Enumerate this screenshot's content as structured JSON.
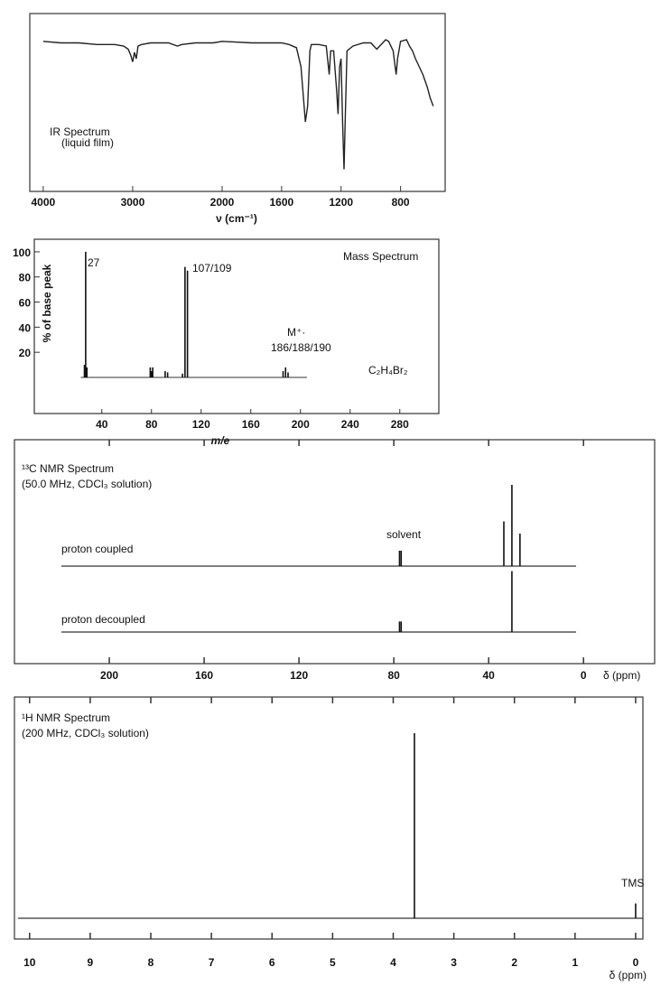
{
  "chart_data": [
    {
      "type": "line",
      "title": "IR Spectrum",
      "subtitle": "(liquid film)",
      "x_label": "ν (cm⁻¹)",
      "xlim": [
        4150,
        500
      ],
      "xticks": [
        4000,
        3000,
        2000,
        1600,
        1200,
        800
      ],
      "x": [
        4000,
        3800,
        3600,
        3400,
        3200,
        3100,
        3050,
        3020,
        3000,
        2980,
        2960,
        2940,
        2900,
        2800,
        2600,
        2500,
        2450,
        2300,
        2100,
        2000,
        1800,
        1600,
        1550,
        1500,
        1470,
        1440,
        1425,
        1410,
        1400,
        1350,
        1300,
        1280,
        1270,
        1250,
        1230,
        1220,
        1210,
        1200,
        1190,
        1180,
        1170,
        1160,
        1120,
        1050,
        1000,
        960,
        940,
        900,
        880,
        850,
        830,
        820,
        800,
        760,
        740,
        720,
        700,
        680,
        650,
        620,
        600,
        580
      ],
      "values": [
        91,
        90,
        90,
        89,
        89,
        88,
        86,
        82,
        78,
        84,
        80,
        88,
        89,
        90,
        90,
        88,
        89,
        90,
        90,
        91,
        90,
        90,
        89,
        87,
        75,
        40,
        50,
        85,
        89,
        89,
        88,
        70,
        85,
        85,
        60,
        45,
        75,
        80,
        40,
        10,
        50,
        85,
        88,
        90,
        90,
        86,
        88,
        92,
        91,
        85,
        70,
        80,
        91,
        92,
        88,
        85,
        80,
        76,
        70,
        62,
        55,
        50
      ],
      "color": "#222222"
    },
    {
      "type": "bar",
      "title": "Mass Spectrum",
      "y_label": "% of base peak",
      "x_label": "m/e",
      "xlim": [
        -10,
        310
      ],
      "ylim": [
        0,
        110
      ],
      "xticks": [
        40,
        80,
        120,
        160,
        200,
        240,
        280
      ],
      "yticks": [
        20,
        40,
        60,
        80,
        100
      ],
      "x": [
        26,
        27,
        28,
        79,
        80,
        81,
        91,
        93,
        105,
        107,
        109,
        186,
        188,
        190
      ],
      "values": [
        10,
        100,
        8,
        8,
        5,
        8,
        5,
        4,
        3,
        88,
        85,
        5,
        8,
        4
      ],
      "annotations": [
        "27",
        "107/109",
        "M⁺·",
        "186/188/190",
        "C₂H₄Br₂"
      ],
      "color": "#111111"
    },
    {
      "type": "stick",
      "title": "¹³C NMR Spectrum",
      "subtitle": "(50.0 MHz, CDCl₃ solution)",
      "x_label": "δ (ppm)",
      "xlim": [
        240,
        -30
      ],
      "xticks": [
        200,
        160,
        120,
        80,
        40,
        0
      ],
      "series": [
        {
          "name": "proton coupled",
          "x": [
            77.6,
            76.9,
            33.6,
            30.2,
            26.8
          ],
          "values": [
            19,
            19,
            55,
            100,
            40
          ]
        },
        {
          "name": "proton decoupled",
          "x": [
            77.6,
            76.9,
            30.2
          ],
          "values": [
            13,
            13,
            75
          ]
        }
      ],
      "annotations": [
        "solvent"
      ],
      "color": "#111111"
    },
    {
      "type": "stick",
      "title": "¹H NMR Spectrum",
      "subtitle": "(200 MHz, CDCl₃ solution)",
      "x_label": "δ (ppm)",
      "xlim": [
        10.25,
        -0.12
      ],
      "xticks": [
        10,
        9,
        8,
        7,
        6,
        5,
        4,
        3,
        2,
        1,
        0
      ],
      "series": [
        {
          "x": [
            3.65,
            0
          ],
          "values": [
            100,
            8
          ]
        }
      ],
      "annotations": [
        "TMS"
      ],
      "color": "#111111"
    }
  ]
}
